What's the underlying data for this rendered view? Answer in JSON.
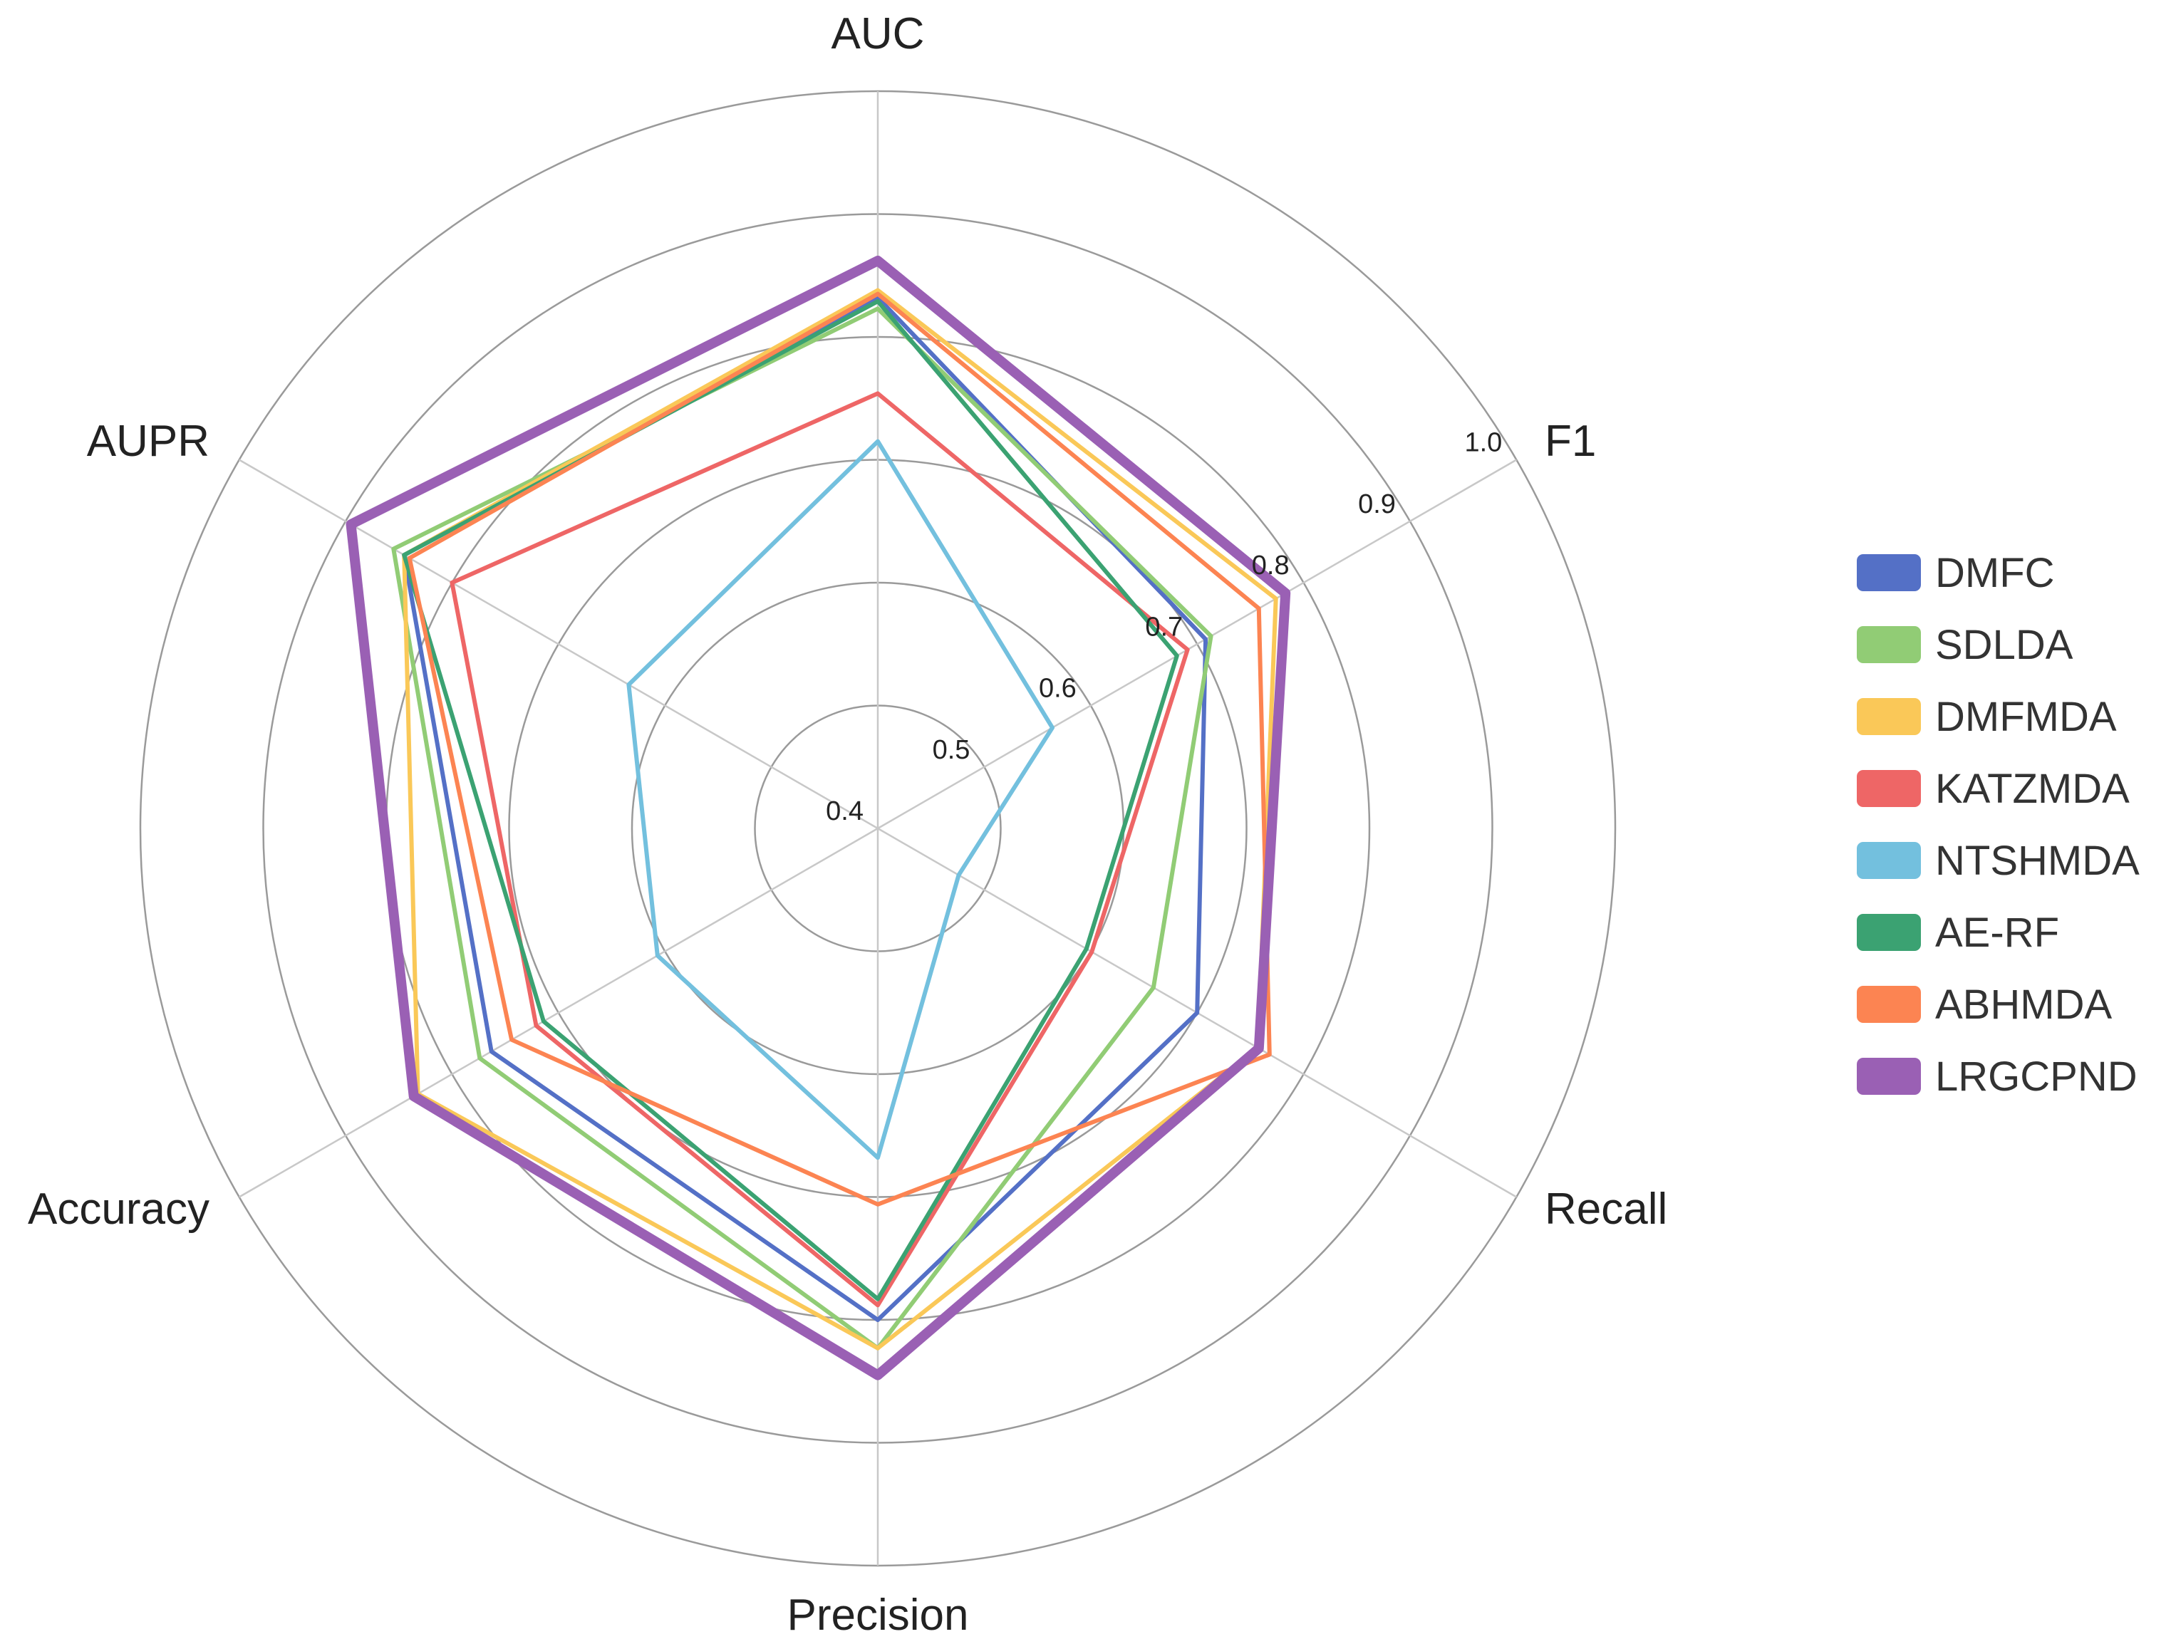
{
  "chart_data": {
    "type": "radar",
    "title": "",
    "axes": [
      "AUC",
      "F1",
      "Recall",
      "Precision",
      "Accuracy",
      "AUPR"
    ],
    "radial_range": [
      0.4,
      1.0
    ],
    "ticks": [
      0.4,
      0.5,
      0.6,
      0.7,
      0.8,
      0.9,
      1.0
    ],
    "tick_labels": [
      "0.4",
      "0.5",
      "0.6",
      "0.7",
      "0.8",
      "0.9",
      "1.0"
    ],
    "grid": true,
    "legend_position": "right",
    "series": [
      {
        "name": "DMFC",
        "color": "#5470c6",
        "values": [
          0.832,
          0.708,
          0.7,
          0.8,
          0.763,
          0.845
        ]
      },
      {
        "name": "SDLDA",
        "color": "#91cc75",
        "values": [
          0.823,
          0.713,
          0.659,
          0.823,
          0.774,
          0.855
        ]
      },
      {
        "name": "DMFMDA",
        "color": "#fac858",
        "values": [
          0.838,
          0.774,
          0.757,
          0.823,
          0.832,
          0.845
        ]
      },
      {
        "name": "KATZMDA",
        "color": "#ee6666",
        "values": [
          0.754,
          0.691,
          0.601,
          0.788,
          0.721,
          0.8
        ]
      },
      {
        "name": "NTSHMDA",
        "color": "#73c0de",
        "values": [
          0.715,
          0.564,
          0.476,
          0.668,
          0.607,
          0.634
        ]
      },
      {
        "name": "AE-RF",
        "color": "#3ba272",
        "values": [
          0.829,
          0.681,
          0.596,
          0.783,
          0.714,
          0.845
        ]
      },
      {
        "name": "ABHMDA",
        "color": "#fc8452",
        "values": [
          0.835,
          0.758,
          0.768,
          0.706,
          0.744,
          0.84
        ]
      },
      {
        "name": "LRGCPND",
        "color": "#9a60b4",
        "values": [
          0.862,
          0.783,
          0.758,
          0.845,
          0.836,
          0.895
        ]
      }
    ]
  }
}
